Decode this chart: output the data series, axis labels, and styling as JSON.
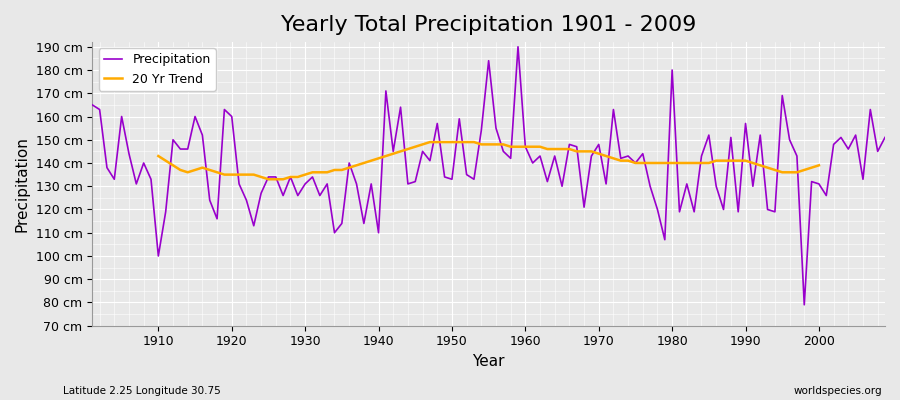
{
  "title": "Yearly Total Precipitation 1901 - 2009",
  "xlabel": "Year",
  "ylabel": "Precipitation",
  "subtitle": "Latitude 2.25 Longitude 30.75",
  "watermark": "worldspecies.org",
  "years": [
    1901,
    1902,
    1903,
    1904,
    1905,
    1906,
    1907,
    1908,
    1909,
    1910,
    1911,
    1912,
    1913,
    1914,
    1915,
    1916,
    1917,
    1918,
    1919,
    1920,
    1921,
    1922,
    1923,
    1924,
    1925,
    1926,
    1927,
    1928,
    1929,
    1930,
    1931,
    1932,
    1933,
    1934,
    1935,
    1936,
    1937,
    1938,
    1939,
    1940,
    1941,
    1942,
    1943,
    1944,
    1945,
    1946,
    1947,
    1948,
    1949,
    1950,
    1951,
    1952,
    1953,
    1954,
    1955,
    1956,
    1957,
    1958,
    1959,
    1960,
    1961,
    1962,
    1963,
    1964,
    1965,
    1966,
    1967,
    1968,
    1969,
    1970,
    1971,
    1972,
    1973,
    1974,
    1975,
    1976,
    1977,
    1978,
    1979,
    1980,
    1981,
    1982,
    1983,
    1984,
    1985,
    1986,
    1987,
    1988,
    1989,
    1990,
    1991,
    1992,
    1993,
    1994,
    1995,
    1996,
    1997,
    1998,
    1999,
    2000,
    2001,
    2002,
    2003,
    2004,
    2005,
    2006,
    2007,
    2008,
    2009
  ],
  "precipitation": [
    165,
    163,
    138,
    133,
    160,
    144,
    131,
    140,
    133,
    100,
    119,
    150,
    146,
    146,
    160,
    152,
    124,
    116,
    163,
    160,
    131,
    124,
    113,
    127,
    134,
    134,
    126,
    134,
    126,
    131,
    134,
    126,
    131,
    110,
    114,
    140,
    131,
    114,
    131,
    110,
    171,
    145,
    164,
    131,
    132,
    145,
    141,
    157,
    134,
    133,
    159,
    135,
    133,
    154,
    184,
    155,
    145,
    142,
    190,
    147,
    140,
    143,
    132,
    143,
    130,
    148,
    147,
    121,
    143,
    148,
    131,
    163,
    142,
    143,
    140,
    144,
    130,
    120,
    107,
    180,
    119,
    131,
    119,
    143,
    152,
    130,
    120,
    151,
    119,
    157,
    130,
    152,
    120,
    119,
    169,
    150,
    143,
    79,
    132,
    131,
    126,
    148,
    151,
    146,
    152,
    133,
    163,
    145,
    151
  ],
  "trend_years": [
    1910,
    1911,
    1912,
    1913,
    1914,
    1915,
    1916,
    1917,
    1918,
    1919,
    1920,
    1921,
    1922,
    1923,
    1924,
    1925,
    1926,
    1927,
    1928,
    1929,
    1930,
    1931,
    1932,
    1933,
    1934,
    1935,
    1936,
    1937,
    1938,
    1939,
    1940,
    1941,
    1942,
    1943,
    1944,
    1945,
    1946,
    1947,
    1948,
    1949,
    1950,
    1951,
    1952,
    1953,
    1954,
    1955,
    1956,
    1957,
    1958,
    1959,
    1960,
    1961,
    1962,
    1963,
    1964,
    1965,
    1966,
    1967,
    1968,
    1969,
    1970,
    1971,
    1972,
    1973,
    1974,
    1975,
    1976,
    1977,
    1978,
    1979,
    1980,
    1981,
    1982,
    1983,
    1984,
    1985,
    1986,
    1987,
    1988,
    1989,
    1990,
    1991,
    1992,
    1993,
    1994,
    1995,
    1996,
    1997,
    1998,
    1999,
    2000
  ],
  "trend": [
    143,
    141,
    139,
    137,
    136,
    137,
    138,
    137,
    136,
    135,
    135,
    135,
    135,
    135,
    134,
    133,
    133,
    133,
    134,
    134,
    135,
    136,
    136,
    136,
    137,
    137,
    138,
    139,
    140,
    141,
    142,
    143,
    144,
    145,
    146,
    147,
    148,
    149,
    149,
    149,
    149,
    149,
    149,
    149,
    148,
    148,
    148,
    148,
    147,
    147,
    147,
    147,
    147,
    146,
    146,
    146,
    146,
    145,
    145,
    145,
    144,
    143,
    142,
    141,
    141,
    140,
    140,
    140,
    140,
    140,
    140,
    140,
    140,
    140,
    140,
    140,
    141,
    141,
    141,
    141,
    141,
    140,
    139,
    138,
    137,
    136,
    136,
    136,
    137,
    138,
    139
  ],
  "precip_color": "#9900cc",
  "trend_color": "#ffaa00",
  "bg_color": "#e8e8e8",
  "grid_color": "#ffffff",
  "ylim": [
    70,
    192
  ],
  "yticks": [
    70,
    80,
    90,
    100,
    110,
    120,
    130,
    140,
    150,
    160,
    170,
    180,
    190
  ],
  "title_fontsize": 16,
  "axis_fontsize": 11,
  "tick_fontsize": 9,
  "legend_fontsize": 9
}
